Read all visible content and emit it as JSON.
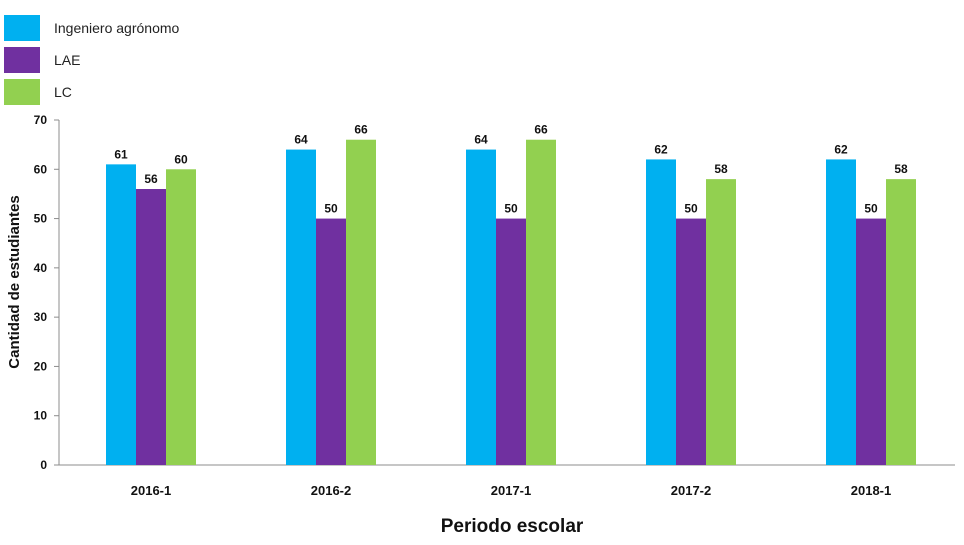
{
  "chart_data": {
    "type": "bar",
    "title": "",
    "xlabel": "Periodo escolar",
    "ylabel": "Cantidad  de estudiantes",
    "categories": [
      "2016-1",
      "2016-2",
      "2017-1",
      "2017-2",
      "2018-1"
    ],
    "ylim": [
      0,
      70
    ],
    "yticks": [
      0,
      10,
      20,
      30,
      40,
      50,
      60,
      70
    ],
    "grid": false,
    "legend_position": "top-left",
    "data_labels": true,
    "series": [
      {
        "name": "Ingeniero agrónomo",
        "values": [
          61,
          64,
          64,
          62,
          62
        ],
        "color": "#00B0F0"
      },
      {
        "name": "LAE",
        "values": [
          56,
          50,
          50,
          50,
          50
        ],
        "color": "#7030A0"
      },
      {
        "name": "LC",
        "values": [
          60,
          66,
          66,
          58,
          58
        ],
        "color": "#92D050"
      }
    ]
  }
}
